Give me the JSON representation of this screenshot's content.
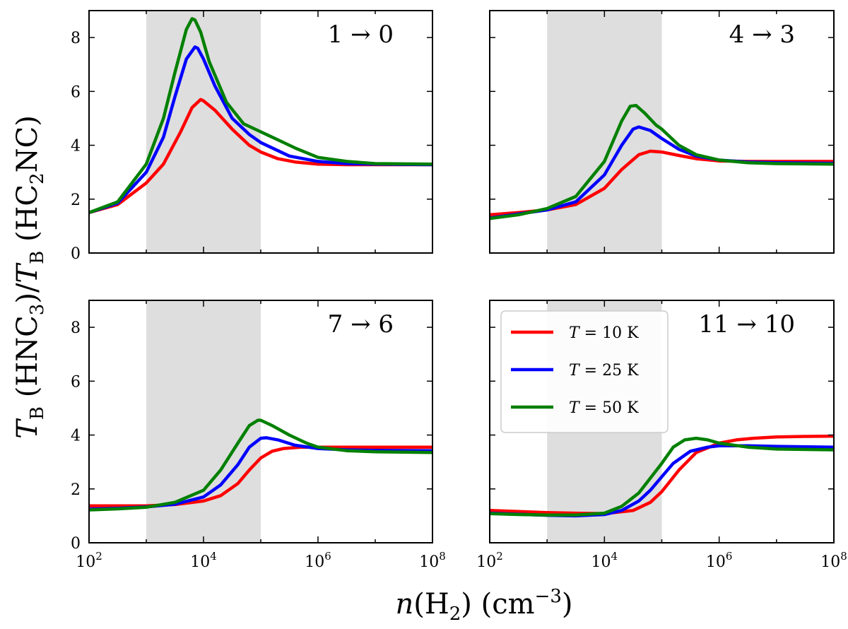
{
  "chart_data": {
    "type": "line",
    "x_scale": "log",
    "xlim_log10": [
      2,
      8
    ],
    "ylim": [
      0,
      9
    ],
    "x_ticks": [
      "10^2",
      "10^4",
      "10^6",
      "10^8"
    ],
    "y_ticks": [
      0,
      2,
      4,
      6,
      8
    ],
    "xlabel": "n(H2) (cm−3)",
    "ylabel": "TB (HNC3)/TB (HC2NC)",
    "shaded_region_log10": [
      3,
      5
    ],
    "shade_color": "#dedede",
    "legend": {
      "placement": "upper-left of bottom-right panel",
      "entries": [
        {
          "name": "T = 10 K",
          "color": "#ff0000"
        },
        {
          "name": "T = 25 K",
          "color": "#0000ff"
        },
        {
          "name": "T = 50 K",
          "color": "#008000"
        }
      ]
    },
    "panels": [
      {
        "label": "1 → 0",
        "series": [
          {
            "name": "T = 10 K",
            "color": "#ff0000",
            "x_log10": [
              2,
              2.5,
              3,
              3.3,
              3.6,
              3.8,
              3.95,
              4,
              4.2,
              4.5,
              4.8,
              5,
              5.3,
              5.6,
              6,
              6.5,
              7,
              7.5,
              8
            ],
            "y": [
              1.5,
              1.8,
              2.6,
              3.3,
              4.5,
              5.4,
              5.7,
              5.65,
              5.3,
              4.6,
              4.0,
              3.75,
              3.5,
              3.38,
              3.3,
              3.28,
              3.28,
              3.28,
              3.28
            ]
          },
          {
            "name": "T = 25 K",
            "color": "#0000ff",
            "x_log10": [
              2,
              2.5,
              3,
              3.3,
              3.5,
              3.7,
              3.85,
              3.9,
              4,
              4.2,
              4.5,
              4.8,
              5,
              5.5,
              6,
              6.5,
              7,
              8
            ],
            "y": [
              1.5,
              1.85,
              3.0,
              4.3,
              5.8,
              7.2,
              7.65,
              7.6,
              7.2,
              6.2,
              5.0,
              4.4,
              4.1,
              3.6,
              3.4,
              3.32,
              3.3,
              3.28
            ]
          },
          {
            "name": "T = 50 K",
            "color": "#008000",
            "x_log10": [
              2,
              2.5,
              3,
              3.3,
              3.5,
              3.7,
              3.8,
              3.85,
              3.95,
              4.1,
              4.4,
              4.7,
              5,
              5.3,
              5.6,
              6,
              6.5,
              7,
              8
            ],
            "y": [
              1.5,
              1.9,
              3.3,
              5.0,
              6.7,
              8.3,
              8.7,
              8.65,
              8.2,
              7.1,
              5.6,
              4.8,
              4.5,
              4.2,
              3.9,
              3.55,
              3.4,
              3.32,
              3.3
            ]
          }
        ]
      },
      {
        "label": "4 → 3",
        "series": [
          {
            "name": "T = 10 K",
            "color": "#ff0000",
            "x_log10": [
              2,
              2.5,
              3,
              3.5,
              4,
              4.3,
              4.6,
              4.8,
              5,
              5.3,
              5.6,
              6,
              6.5,
              7,
              7.5,
              8
            ],
            "y": [
              1.42,
              1.5,
              1.6,
              1.8,
              2.4,
              3.1,
              3.65,
              3.78,
              3.75,
              3.62,
              3.5,
              3.42,
              3.4,
              3.4,
              3.4,
              3.4
            ]
          },
          {
            "name": "T = 25 K",
            "color": "#0000ff",
            "x_log10": [
              2,
              2.5,
              3,
              3.5,
              4,
              4.3,
              4.5,
              4.6,
              4.8,
              5,
              5.3,
              5.6,
              6,
              6.5,
              7,
              8
            ],
            "y": [
              1.3,
              1.45,
              1.6,
              1.9,
              2.9,
              4.0,
              4.6,
              4.68,
              4.55,
              4.25,
              3.85,
              3.6,
              3.45,
              3.38,
              3.35,
              3.33
            ]
          },
          {
            "name": "T = 50 K",
            "color": "#008000",
            "x_log10": [
              2,
              2.5,
              3,
              3.5,
              4,
              4.3,
              4.45,
              4.55,
              4.7,
              4.9,
              5,
              5.3,
              5.6,
              6,
              6.5,
              7,
              8
            ],
            "y": [
              1.28,
              1.42,
              1.65,
              2.1,
              3.4,
              4.9,
              5.45,
              5.48,
              5.2,
              4.75,
              4.6,
              4.0,
              3.65,
              3.45,
              3.35,
              3.32,
              3.3
            ]
          }
        ]
      },
      {
        "label": "7 → 6",
        "series": [
          {
            "name": "T = 10 K",
            "color": "#ff0000",
            "x_log10": [
              2,
              2.5,
              3,
              3.5,
              4,
              4.3,
              4.6,
              4.8,
              5,
              5.2,
              5.4,
              5.7,
              6,
              6.5,
              7,
              8
            ],
            "y": [
              1.37,
              1.37,
              1.37,
              1.42,
              1.55,
              1.75,
              2.2,
              2.7,
              3.15,
              3.4,
              3.5,
              3.55,
              3.55,
              3.55,
              3.55,
              3.55
            ]
          },
          {
            "name": "T = 25 K",
            "color": "#0000ff",
            "x_log10": [
              2,
              2.5,
              3,
              3.5,
              4,
              4.3,
              4.6,
              4.8,
              5,
              5.1,
              5.3,
              5.6,
              6,
              6.5,
              7,
              8
            ],
            "y": [
              1.25,
              1.28,
              1.33,
              1.43,
              1.7,
              2.15,
              2.9,
              3.55,
              3.88,
              3.9,
              3.82,
              3.62,
              3.5,
              3.45,
              3.43,
              3.42
            ]
          },
          {
            "name": "T = 50 K",
            "color": "#008000",
            "x_log10": [
              2,
              2.5,
              3,
              3.5,
              4,
              4.3,
              4.6,
              4.8,
              4.95,
              5,
              5.2,
              5.5,
              5.8,
              6,
              6.5,
              7,
              8
            ],
            "y": [
              1.22,
              1.26,
              1.32,
              1.5,
              1.95,
              2.7,
              3.7,
              4.35,
              4.55,
              4.55,
              4.35,
              4.0,
              3.7,
              3.55,
              3.42,
              3.38,
              3.35
            ]
          }
        ]
      },
      {
        "label": "11 → 10",
        "series": [
          {
            "name": "T = 10 K",
            "color": "#ff0000",
            "x_log10": [
              2,
              2.5,
              3,
              3.5,
              4,
              4.5,
              4.8,
              5,
              5.3,
              5.6,
              6,
              6.3,
              6.6,
              7,
              7.5,
              8
            ],
            "y": [
              1.2,
              1.16,
              1.12,
              1.1,
              1.08,
              1.2,
              1.5,
              1.9,
              2.7,
              3.35,
              3.7,
              3.82,
              3.88,
              3.93,
              3.95,
              3.96
            ]
          },
          {
            "name": "T = 25 K",
            "color": "#0000ff",
            "x_log10": [
              2,
              2.5,
              3,
              3.5,
              4,
              4.3,
              4.6,
              4.8,
              5,
              5.2,
              5.5,
              5.8,
              6,
              6.5,
              7,
              8
            ],
            "y": [
              1.1,
              1.06,
              1.02,
              1.0,
              1.05,
              1.2,
              1.55,
              1.95,
              2.45,
              2.95,
              3.4,
              3.55,
              3.6,
              3.6,
              3.58,
              3.55
            ]
          },
          {
            "name": "T = 50 K",
            "color": "#008000",
            "x_log10": [
              2,
              2.5,
              3,
              3.5,
              4,
              4.3,
              4.6,
              4.8,
              5,
              5.2,
              5.4,
              5.6,
              5.8,
              6,
              6.5,
              7,
              8
            ],
            "y": [
              1.08,
              1.05,
              1.03,
              1.03,
              1.1,
              1.35,
              1.85,
              2.4,
              2.95,
              3.55,
              3.82,
              3.88,
              3.82,
              3.7,
              3.55,
              3.48,
              3.45
            ]
          }
        ]
      }
    ]
  }
}
